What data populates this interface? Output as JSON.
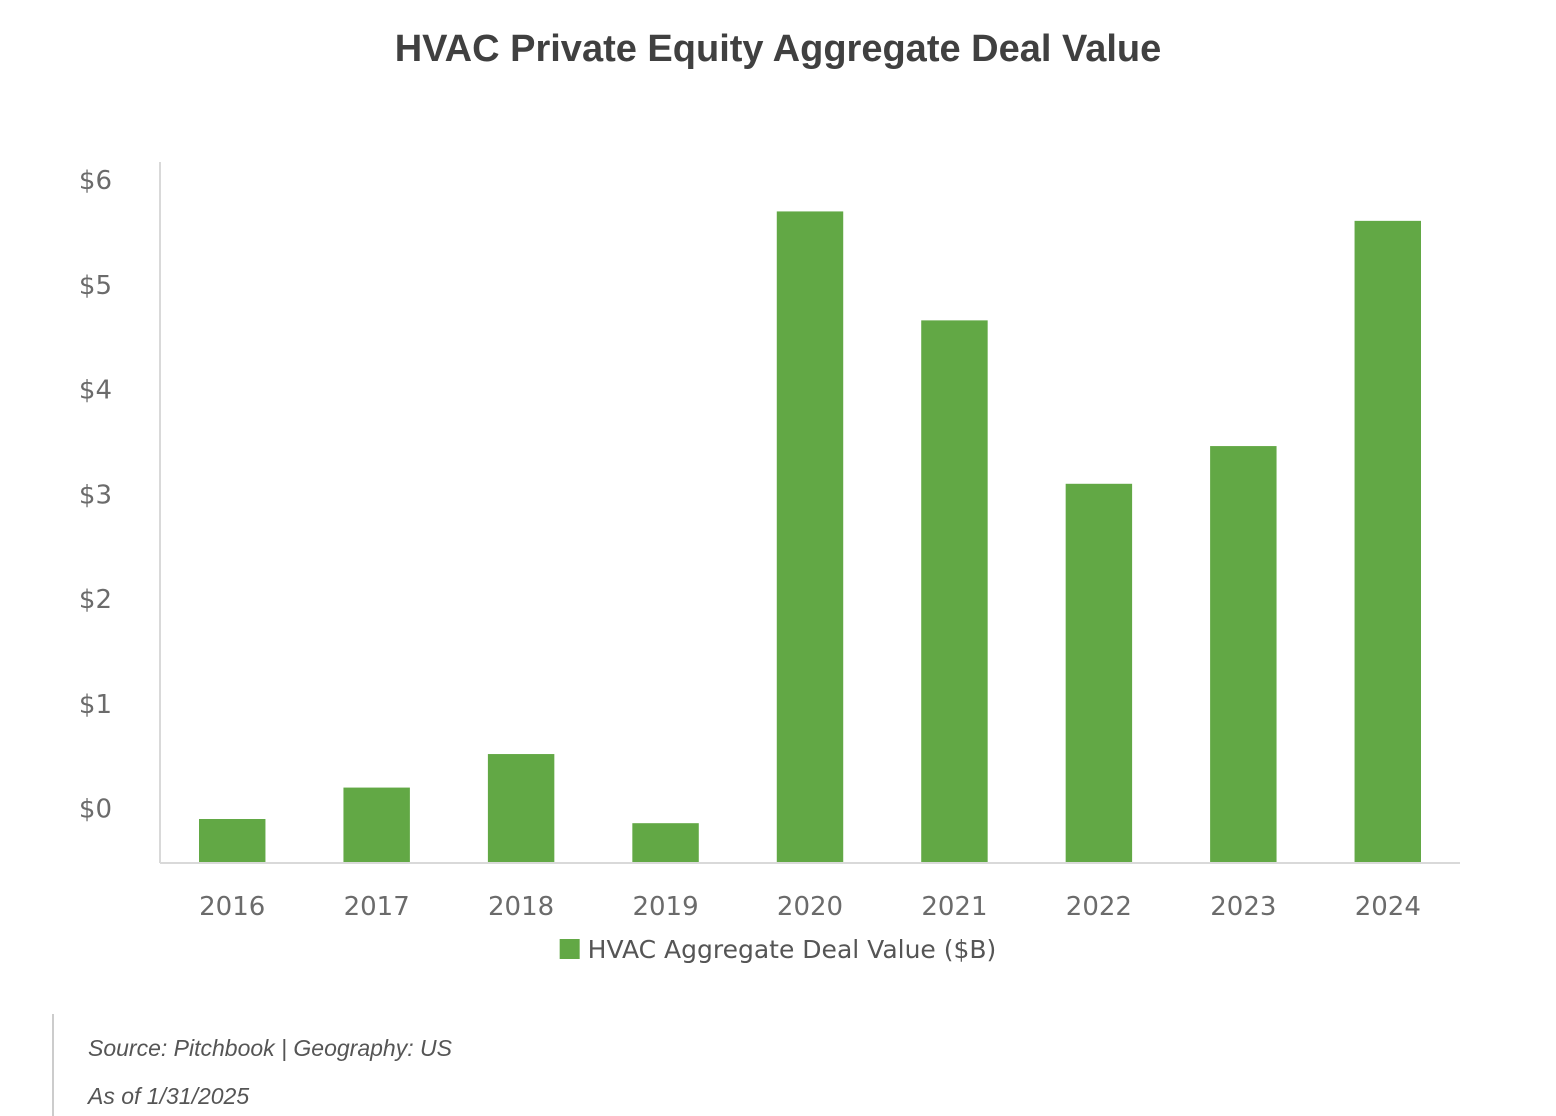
{
  "chart_data": {
    "type": "bar",
    "title": "HVAC Private Equity Aggregate Deal Value",
    "categories": [
      "2016",
      "2017",
      "2018",
      "2019",
      "2020",
      "2021",
      "2022",
      "2023",
      "2024"
    ],
    "series": [
      {
        "name": "HVAC Aggregate Deal Value ($B)",
        "values": [
          -0.1,
          0.2,
          0.52,
          -0.14,
          5.7,
          4.66,
          3.1,
          3.46,
          5.61
        ]
      }
    ],
    "ytick_labels": [
      "$0",
      "$1",
      "$2",
      "$3",
      "$4",
      "$5",
      "$6"
    ],
    "ylim": [
      -0.52,
      6.0
    ],
    "xlabel": "",
    "ylabel": "",
    "grid": false,
    "legend_position": "bottom",
    "colors": {
      "bar": "#62a845",
      "axis": "#d9d9d9"
    }
  },
  "footer": {
    "source": "Source: Pitchbook | Geography: US",
    "as_of": "As of 1/31/2025"
  }
}
